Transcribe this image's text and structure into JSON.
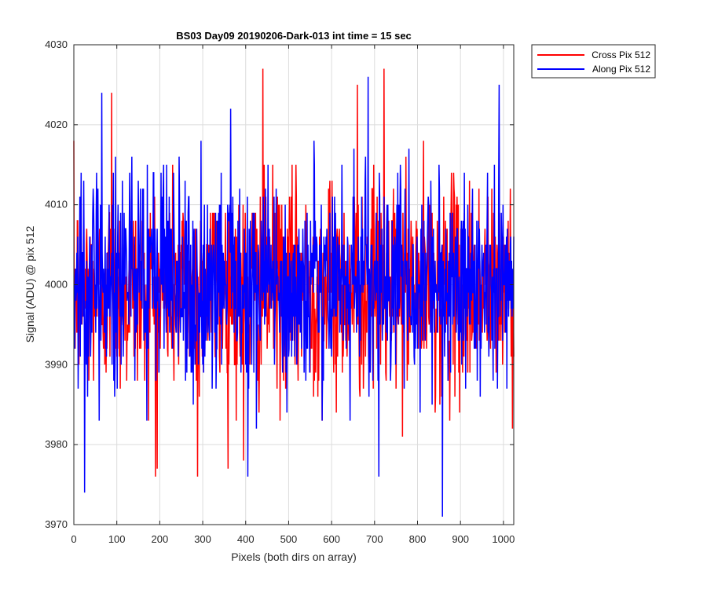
{
  "chart_data": {
    "type": "line",
    "title": "BS03 Day09 20190206-Dark-013 int time = 15 sec",
    "xlabel": "Pixels (both dirs on array)",
    "ylabel": "Signal (ADU) @ pix 512",
    "xlim": [
      0,
      1024
    ],
    "ylim": [
      3970,
      4030
    ],
    "xticks": [
      0,
      100,
      200,
      300,
      400,
      500,
      600,
      700,
      800,
      900,
      1000
    ],
    "yticks": [
      3970,
      3980,
      3990,
      4000,
      4010,
      4020,
      4030
    ],
    "grid": true,
    "legend_position": "outside-top-right",
    "series": [
      {
        "name": "Cross Pix 512",
        "color": "#ff0000",
        "approx_mean": 3999.5,
        "approx_std": 6.5,
        "range": [
          3976,
          4027
        ],
        "peaks": [
          {
            "x": 88,
            "y": 4024
          },
          {
            "x": 440,
            "y": 4027
          },
          {
            "x": 722,
            "y": 4027
          },
          {
            "x": 660,
            "y": 4025
          },
          {
            "x": 288,
            "y": 3976
          },
          {
            "x": 190,
            "y": 3976
          },
          {
            "x": 395,
            "y": 3978
          }
        ]
      },
      {
        "name": "Along Pix 512",
        "color": "#0000ff",
        "approx_mean": 4000,
        "approx_std": 6.5,
        "range": [
          3971,
          4026
        ],
        "peaks": [
          {
            "x": 65,
            "y": 4024
          },
          {
            "x": 365,
            "y": 4022
          },
          {
            "x": 685,
            "y": 4026
          },
          {
            "x": 990,
            "y": 4025
          },
          {
            "x": 858,
            "y": 3971
          },
          {
            "x": 25,
            "y": 3974
          },
          {
            "x": 405,
            "y": 3976
          },
          {
            "x": 710,
            "y": 3976
          }
        ]
      }
    ]
  }
}
